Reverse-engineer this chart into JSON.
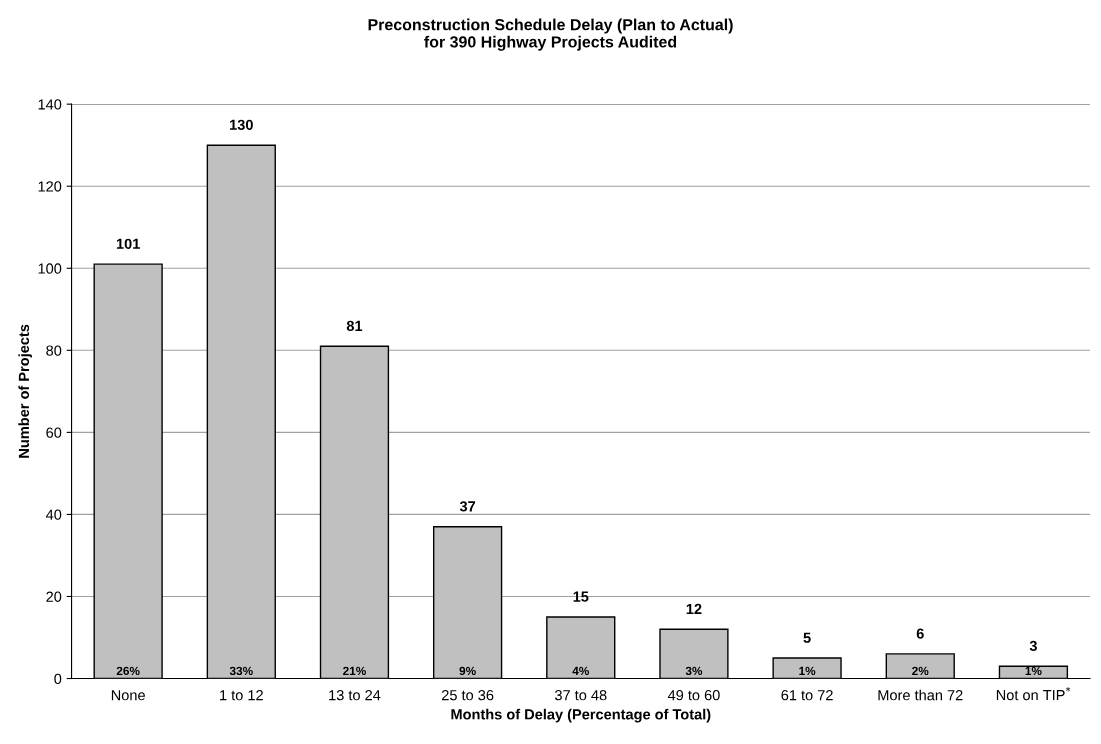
{
  "chart_data": {
    "type": "bar",
    "title": "Preconstruction Schedule Delay (Plan to Actual)\nfor 390 Highway Projects Audited",
    "xlabel": "Months of Delay (Percentage of Total)",
    "ylabel": "Number of Projects",
    "categories": [
      "None",
      "1 to 12",
      "13 to 24",
      "25 to 36",
      "37 to 48",
      "49 to 60",
      "61 to 72",
      "More than 72",
      "Not on TIP$^{*}$"
    ],
    "values": [
      101,
      130,
      81,
      37,
      15,
      12,
      5,
      6,
      3
    ],
    "value_labels": [
      "101",
      "130",
      "81",
      "37",
      "15",
      "12",
      "5",
      "6",
      "3"
    ],
    "annotations": [
      {
        "text": "26%",
        "x": "None",
        "y": 0
      },
      {
        "text": "33%",
        "x": "1 to 12",
        "y": 0
      },
      {
        "text": "21%",
        "x": "13 to 24",
        "y": 0
      },
      {
        "text": "9%",
        "x": "25 to 36",
        "y": 0
      },
      {
        "text": "4%",
        "x": "37 to 48",
        "y": 0
      },
      {
        "text": "3%",
        "x": "49 to 60",
        "y": 0
      },
      {
        "text": "1%",
        "x": "61 to 72",
        "y": 0
      },
      {
        "text": "2%",
        "x": "More than 72",
        "y": 0
      },
      {
        "text": "1%",
        "x": "Not on TIP$^{*}$",
        "y": 0
      }
    ],
    "color": "#c0c0c0",
    "ylim": [
      0,
      140
    ],
    "yticks": [
      0,
      20,
      40,
      60,
      80,
      100,
      120,
      140
    ],
    "grid": "y",
    "legend": false
  }
}
